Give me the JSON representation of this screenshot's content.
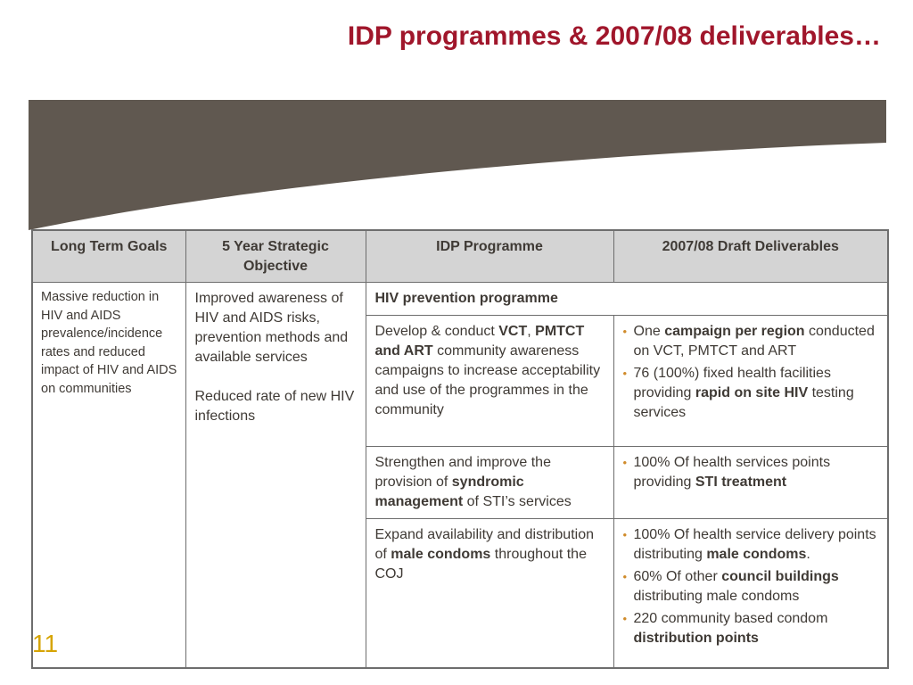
{
  "slide": {
    "title": "IDP programmes & 2007/08 deliverables…",
    "page_number": "11",
    "colors": {
      "title": "#a0162b",
      "banner": "#605850",
      "header_bg": "#d4d4d4",
      "bullet": "#d08b2b",
      "page_number": "#d6a400"
    }
  },
  "table": {
    "headers": [
      "Long Term Goals",
      "5 Year Strategic Objective",
      "IDP Programme",
      "2007/08 Draft Deliverables"
    ],
    "long_term_goal": "Massive reduction in HIV and AIDS prevalence/incidence rates and reduced impact of HIV and AIDS on communities",
    "objective_1": "Improved awareness of HIV and AIDS risks, prevention methods and available services",
    "objective_2": "Reduced rate of new HIV infections",
    "programme_title": "HIV prevention programme",
    "row1": {
      "programme": {
        "t1": "Develop & conduct ",
        "b1": "VCT",
        "t2": ", ",
        "b2": "PMTCT and ART",
        "t3": " community awareness campaigns to increase acceptability and use of the programmes in the community"
      },
      "deliverables": [
        {
          "t1": "One ",
          "b1": "campaign per region",
          "t2": " conducted on VCT, PMTCT and ART"
        },
        {
          "t1": "76 (100%) fixed health facilities providing ",
          "b1": "rapid on site HIV",
          "t2": " testing services"
        }
      ]
    },
    "row2": {
      "programme": {
        "t1": "Strengthen and improve the provision of ",
        "b1": "syndromic management",
        "t2": " of STI’s services"
      },
      "deliverables": [
        {
          "t1": "100% Of health services points providing ",
          "b1": "STI treatment",
          "t2": ""
        }
      ]
    },
    "row3": {
      "programme": {
        "t1": "Expand availability and distribution of ",
        "b1": "male condoms",
        "t2": " throughout the COJ"
      },
      "deliverables": [
        {
          "t1": "100% Of health service delivery points distributing ",
          "b1": "male condoms",
          "t2": "."
        },
        {
          "t1": "60% Of other ",
          "b1": "council buildings",
          "t2": " distributing male condoms"
        },
        {
          "t1": "220 community based condom ",
          "b1": "distribution points",
          "t2": ""
        }
      ]
    }
  }
}
